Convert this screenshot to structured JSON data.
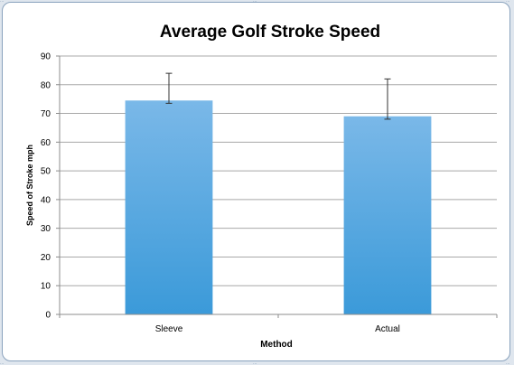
{
  "chart_data": {
    "type": "bar",
    "title": "Average Golf Stroke Speed",
    "xlabel": "Method",
    "ylabel": "Speed of Stroke mph",
    "categories": [
      "Sleeve",
      "Actual"
    ],
    "series": [
      {
        "values": [
          74.5,
          69
        ],
        "error_low": [
          73.5,
          68
        ],
        "error_high": [
          84,
          82
        ]
      }
    ],
    "ylim": [
      0,
      90
    ],
    "yticks": [
      "0",
      "10",
      "20",
      "30",
      "40",
      "50",
      "60",
      "70",
      "80",
      "90"
    ],
    "grid": true,
    "legend": "none"
  },
  "colors": {
    "bar_top": "#7ab8e8",
    "bar_bottom": "#3b9ad9",
    "grid": "#a8a8a8",
    "axis": "#8c8c8c",
    "error_bar": "#333333",
    "text": "#000000"
  }
}
